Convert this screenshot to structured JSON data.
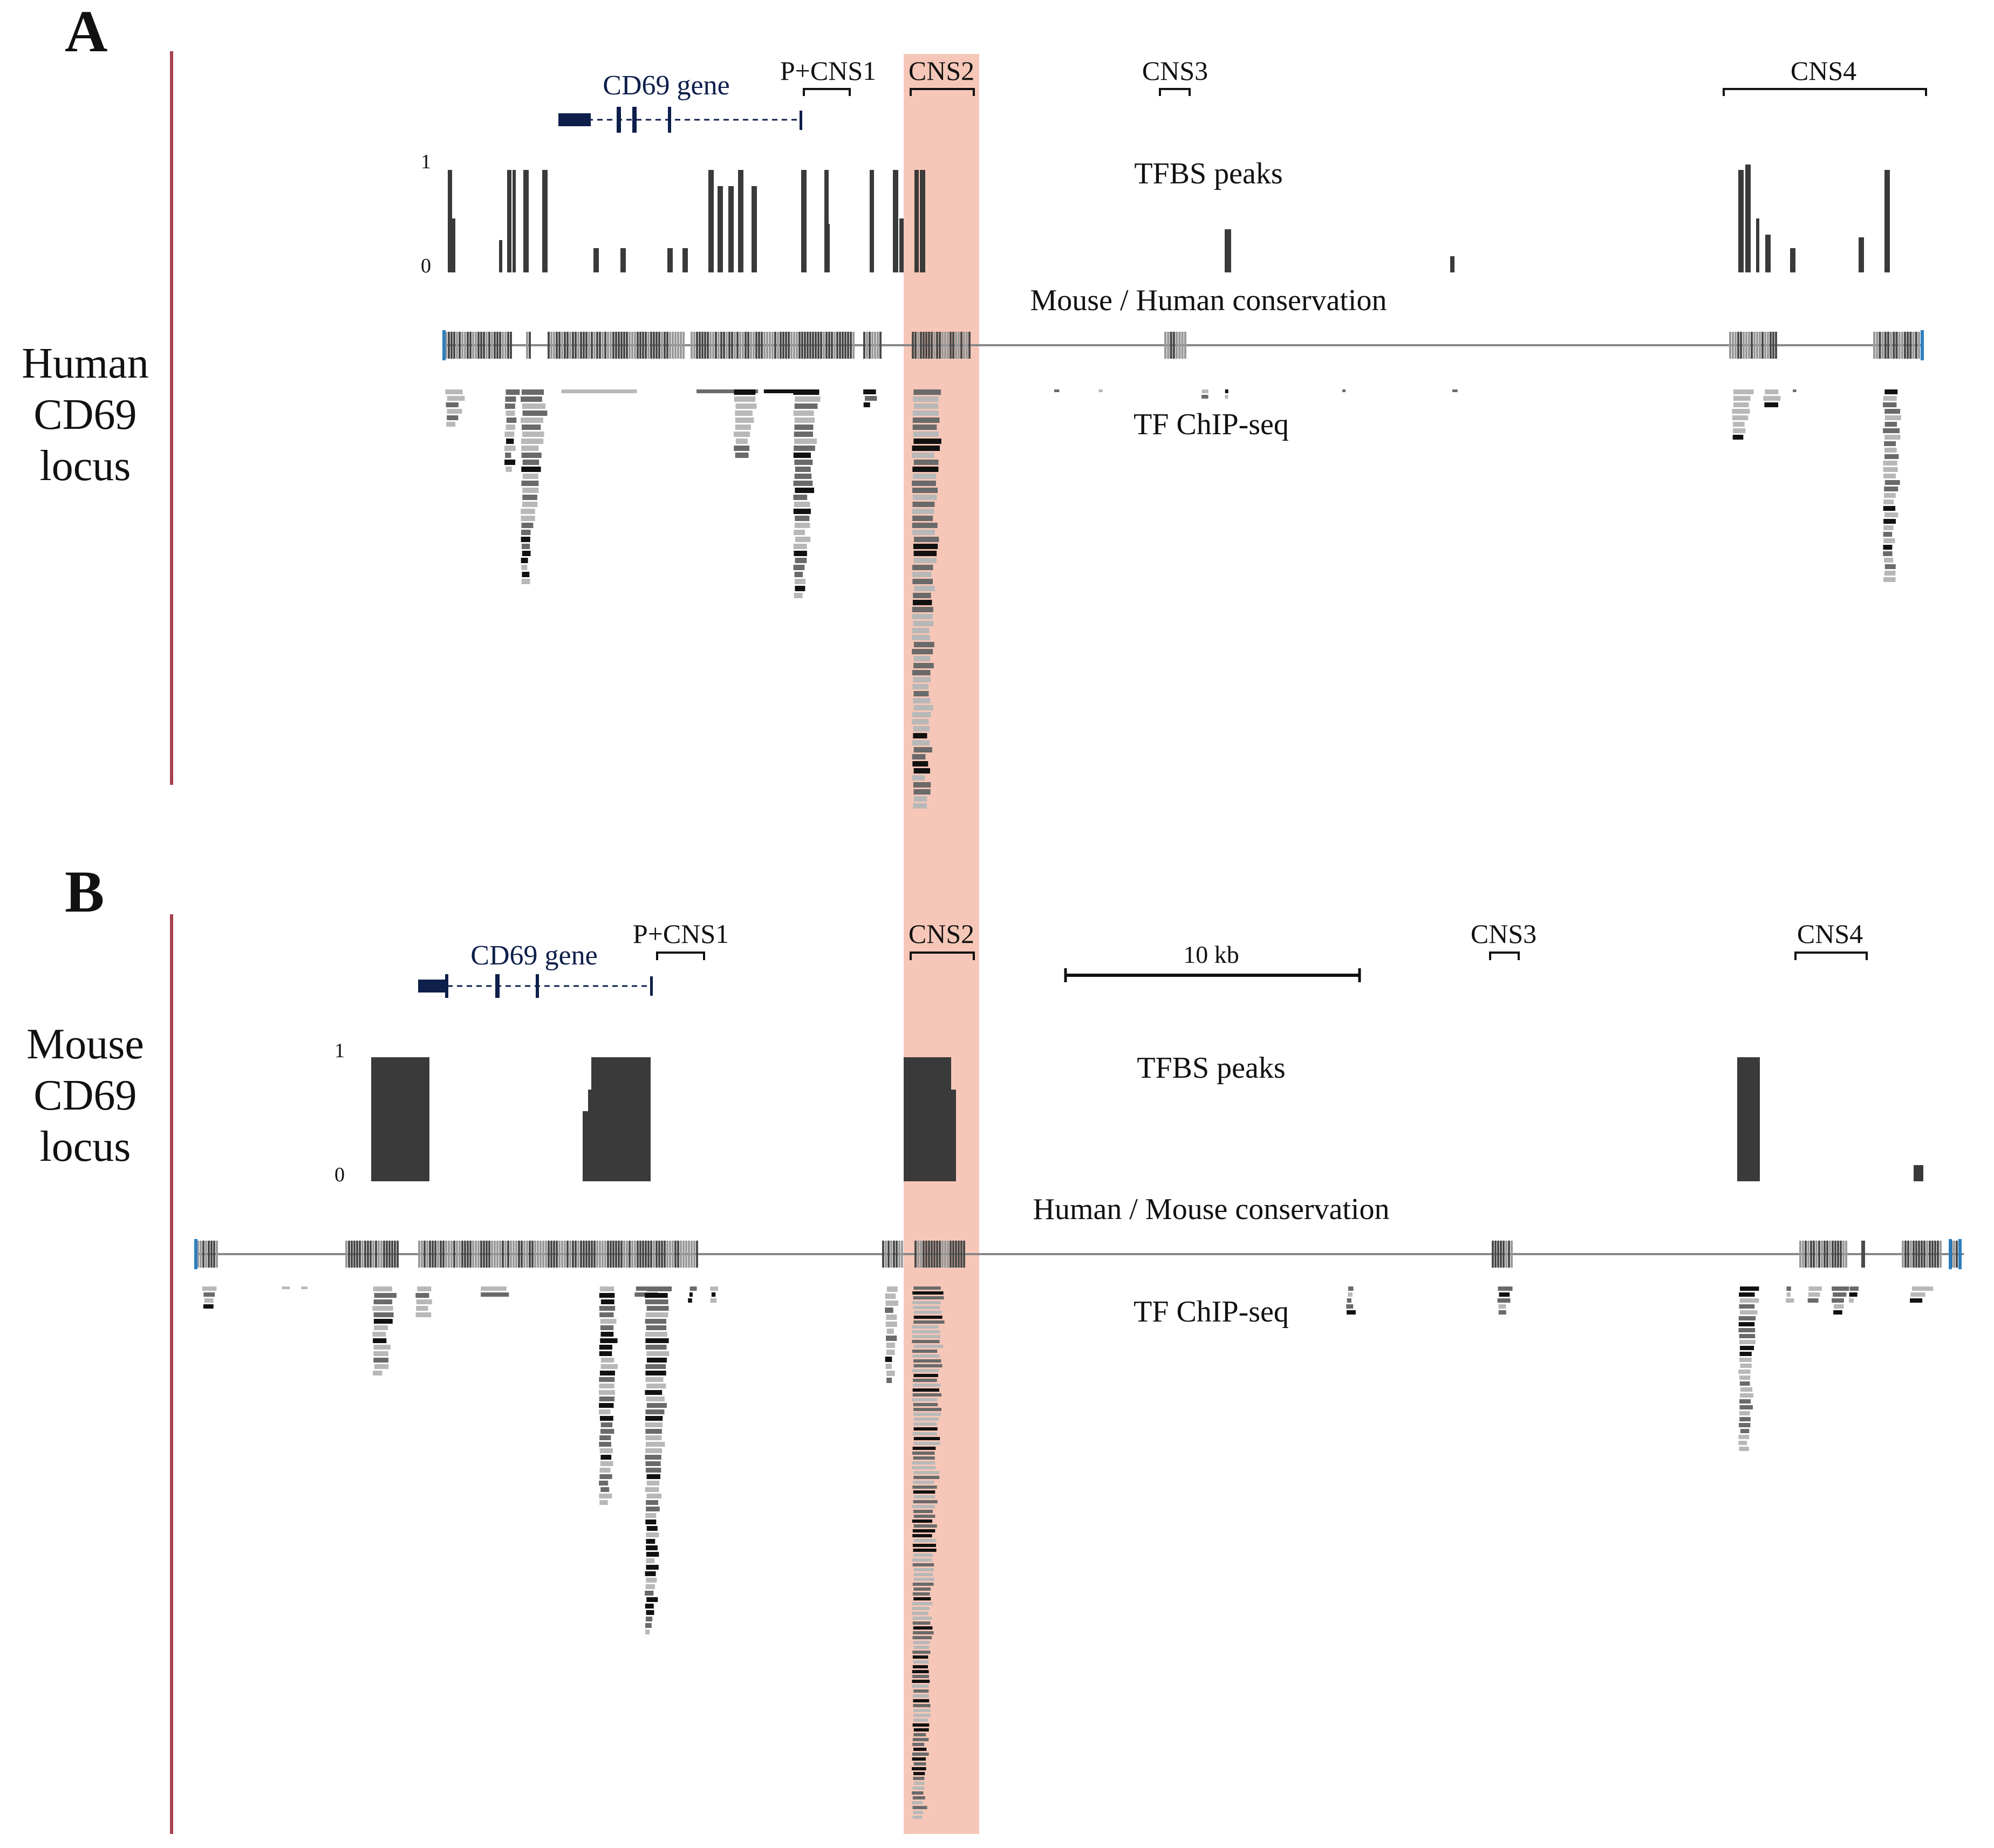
{
  "colors": {
    "highlight": "#f6c7b8",
    "bar": "#3a3a3a",
    "gene": "#0d1f4a",
    "axis_rule": "#a6414f",
    "cons_line": "#888888",
    "cons_block": "#6e6e6e",
    "cons_end": "#2d7fbf"
  },
  "panel_a": {
    "letter": "A",
    "species_label_lines": [
      "Human",
      "CD69",
      "locus"
    ],
    "gene_label": "CD69 gene",
    "regions": [
      "P+CNS1",
      "CNS2",
      "CNS3",
      "CNS4"
    ],
    "tfbs_track_label": "TFBS peaks",
    "tfbs_axis_max": "1",
    "tfbs_axis_min": "0",
    "conservation_label": "Mouse / Human conservation",
    "chipseq_label": "TF ChIP-seq"
  },
  "panel_b": {
    "letter": "B",
    "species_label_lines": [
      "Mouse",
      "CD69",
      "locus"
    ],
    "gene_label": "CD69 gene",
    "regions": [
      "P+CNS1",
      "CNS2",
      "CNS3",
      "CNS4"
    ],
    "scale_bar_label": "10 kb",
    "tfbs_track_label": "TFBS peaks",
    "tfbs_axis_max": "1",
    "tfbs_axis_min": "0",
    "conservation_label": "Human / Mouse conservation",
    "chipseq_label": "TF ChIP-seq"
  }
}
